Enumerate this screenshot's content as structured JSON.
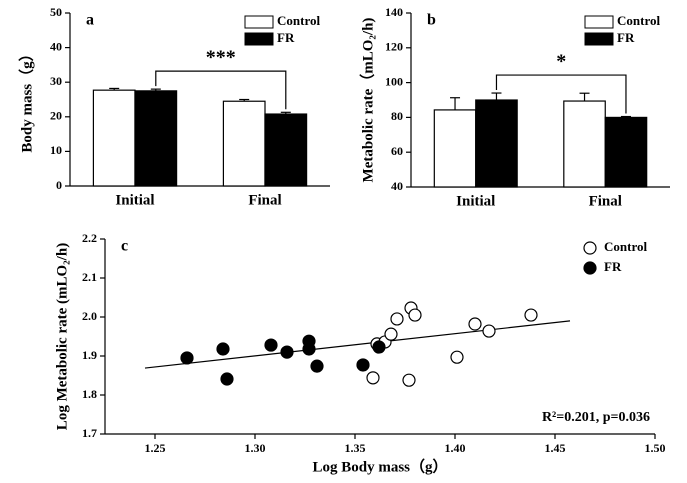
{
  "chart_data": [
    {
      "type": "bar",
      "title": "a",
      "ylabel": "Body mass（g）",
      "categories": [
        "Initial",
        "Final"
      ],
      "series": [
        {
          "name": "Control",
          "color": "#ffffff",
          "values": [
            27.7,
            24.5
          ],
          "errors": [
            0.5,
            0.5
          ]
        },
        {
          "name": "FR",
          "color": "#000000",
          "values": [
            27.5,
            20.8
          ],
          "errors": [
            0.5,
            0.5
          ]
        }
      ],
      "ylim": [
        0,
        50
      ],
      "yticks": [
        0,
        10,
        20,
        30,
        40,
        50
      ],
      "annotation": "***"
    },
    {
      "type": "bar",
      "title": "b",
      "ylabel": "Metabolic rate（mLO₂/h)",
      "categories": [
        "Initial",
        "Final"
      ],
      "series": [
        {
          "name": "Control",
          "color": "#ffffff",
          "values": [
            84.3,
            89.4
          ],
          "errors": [
            7,
            4.5
          ]
        },
        {
          "name": "FR",
          "color": "#000000",
          "values": [
            90,
            80
          ],
          "errors": [
            4,
            0.5
          ]
        }
      ],
      "ylim": [
        40,
        140
      ],
      "yticks": [
        40,
        60,
        80,
        100,
        120,
        140
      ],
      "annotation": "*"
    },
    {
      "type": "scatter",
      "title": "c",
      "xlabel": "Log Body mass（g）",
      "ylabel": "Log  Metabolic rate  (mLO₂/h)",
      "series": [
        {
          "name": "Control",
          "color": "#ffffff",
          "x": [
            1.361,
            1.365,
            1.368,
            1.371,
            1.359,
            1.378,
            1.38,
            1.377,
            1.401,
            1.41,
            1.417,
            1.438
          ],
          "values": [
            1.931,
            1.936,
            1.956,
            1.995,
            1.844,
            2.023,
            2.005,
            1.838,
            1.897,
            1.982,
            1.964,
            2.005
          ]
        },
        {
          "name": "FR",
          "color": "#000000",
          "x": [
            1.266,
            1.284,
            1.286,
            1.308,
            1.316,
            1.327,
            1.327,
            1.331,
            1.354,
            1.362
          ],
          "values": [
            1.895,
            1.918,
            1.841,
            1.928,
            1.91,
            1.938,
            1.918,
            1.874,
            1.877,
            1.923
          ]
        }
      ],
      "trendline": {
        "x": [
          1.245,
          1.4575
        ],
        "values": [
          1.869,
          1.99
        ]
      },
      "xlim": [
        1.225,
        1.5
      ],
      "xticks": [
        1.25,
        {
          "value": 1.3,
          "label": "1.30"
        },
        1.35,
        {
          "value": 1.4,
          "label": "1.40"
        },
        1.45,
        {
          "value": 1.5,
          "label": "1.50"
        }
      ],
      "ylim": [
        1.7,
        2.2
      ],
      "yticks": [
        1.7,
        1.8,
        1.9,
        {
          "value": 2.0,
          "label": "2.0"
        },
        2.1,
        2.2
      ],
      "annotation": "R²=0.201, p=0.036"
    }
  ]
}
